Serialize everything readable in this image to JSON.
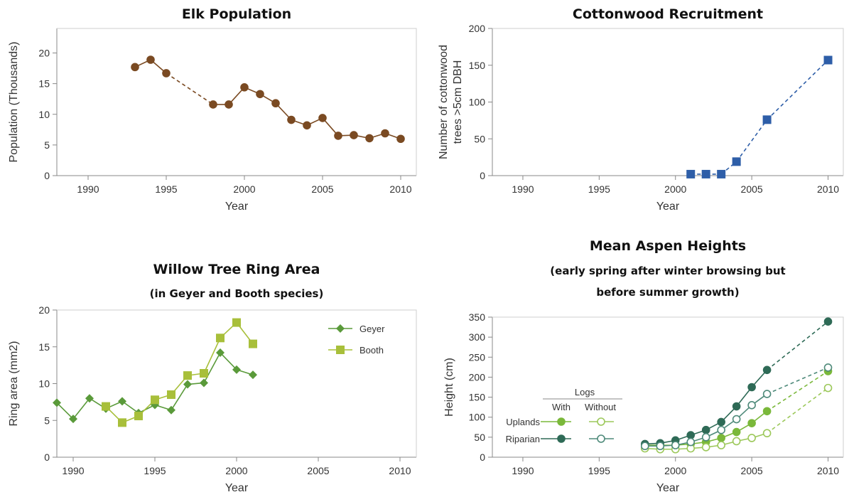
{
  "chart_data": [
    {
      "type": "line",
      "title": "Elk Population",
      "xlabel": "Year",
      "ylabel": "Population (Thousands)",
      "xlim": [
        1988,
        2011
      ],
      "ylim": [
        0,
        24
      ],
      "xticks": [
        "1990",
        "1995",
        "2000",
        "2005",
        "2010"
      ],
      "yticks": [
        "0",
        "5",
        "10",
        "15",
        "20"
      ],
      "color": "#7a4a22",
      "marker": "circle",
      "gap_dashed_between": [
        1995,
        1998
      ],
      "series": [
        {
          "x": [
            1993,
            1994,
            1995,
            1998,
            1999,
            2000,
            2001,
            2002,
            2003,
            2004,
            2005,
            2006,
            2007,
            2008,
            2009,
            2010
          ],
          "y": [
            17.7,
            18.9,
            16.7,
            11.6,
            11.6,
            14.4,
            13.3,
            11.8,
            9.1,
            8.2,
            9.4,
            6.5,
            6.6,
            6.1,
            6.9,
            6.0
          ]
        }
      ]
    },
    {
      "type": "line",
      "title": "Cottonwood Recruitment",
      "xlabel": "Year",
      "ylabel": "Number of cottonwood trees >5cm DBH",
      "ylabel_lines": [
        "Number of cottonwood",
        "trees >5cm DBH"
      ],
      "xlim": [
        1988,
        2011
      ],
      "ylim": [
        0,
        200
      ],
      "xticks": [
        "1990",
        "1995",
        "2000",
        "2005",
        "2010"
      ],
      "yticks": [
        "0",
        "50",
        "100",
        "150",
        "200"
      ],
      "color": "#2e5ea8",
      "marker": "square",
      "line_style": "dashed",
      "series": [
        {
          "x": [
            2001,
            2002,
            2003,
            2004,
            2006,
            2010
          ],
          "y": [
            2,
            2,
            2,
            19,
            76,
            157
          ]
        }
      ]
    },
    {
      "type": "line",
      "title": "Willow Tree Ring Area",
      "subtitle": "(in Geyer and Booth species)",
      "xlabel": "Year",
      "ylabel": "Ring area (mm2)",
      "xlim": [
        1989,
        2011
      ],
      "ylim": [
        0,
        20
      ],
      "xticks": [
        "1990",
        "1995",
        "2000",
        "2005",
        "2010"
      ],
      "yticks": [
        "0",
        "5",
        "10",
        "15",
        "20"
      ],
      "legend": "top-right",
      "series": [
        {
          "name": "Geyer",
          "color": "#5a9a3a",
          "marker": "diamond",
          "x": [
            1989,
            1990,
            1991,
            1992,
            1993,
            1994,
            1995,
            1996,
            1997,
            1998,
            1999,
            2000,
            2001
          ],
          "y": [
            7.4,
            5.2,
            8.0,
            6.6,
            7.6,
            6.0,
            7.1,
            6.4,
            9.9,
            10.1,
            14.2,
            11.9,
            11.2
          ]
        },
        {
          "name": "Booth",
          "color": "#a8bf3a",
          "marker": "square",
          "x": [
            1992,
            1993,
            1994,
            1995,
            1996,
            1997,
            1998,
            1999,
            2000,
            2001
          ],
          "y": [
            6.9,
            4.7,
            5.6,
            7.8,
            8.5,
            11.1,
            11.4,
            16.2,
            18.3,
            15.4
          ]
        }
      ]
    },
    {
      "type": "line",
      "title": "Mean Aspen Heights",
      "subtitle_lines": [
        "(early spring after winter browsing but",
        "before summer growth)"
      ],
      "xlabel": "Year",
      "ylabel": "Height (cm)",
      "xlim": [
        1988,
        2011
      ],
      "ylim": [
        0,
        350
      ],
      "xticks": [
        "1990",
        "1995",
        "2000",
        "2005",
        "2010"
      ],
      "yticks": [
        "0",
        "50",
        "100",
        "150",
        "200",
        "250",
        "300",
        "350"
      ],
      "legend": {
        "header": "Logs",
        "columns": [
          "With",
          "Without"
        ],
        "rows": [
          "Uplands",
          "Riparian"
        ],
        "placement": "middle-left"
      },
      "dashed_after": 2006,
      "series": [
        {
          "name": "Uplands With",
          "color": "#7ab83a",
          "fill": true,
          "x": [
            1998,
            1999,
            2000,
            2001,
            2002,
            2003,
            2004,
            2005,
            2006,
            2010
          ],
          "y": [
            30,
            30,
            30,
            33,
            38,
            48,
            63,
            85,
            115,
            215
          ]
        },
        {
          "name": "Uplands Without",
          "color": "#9cc85a",
          "fill": false,
          "x": [
            1998,
            1999,
            2000,
            2001,
            2002,
            2003,
            2004,
            2005,
            2006,
            2010
          ],
          "y": [
            22,
            20,
            20,
            22,
            25,
            30,
            40,
            48,
            60,
            173
          ]
        },
        {
          "name": "Riparian With",
          "color": "#2e6a56",
          "fill": true,
          "x": [
            1998,
            1999,
            2000,
            2001,
            2002,
            2003,
            2004,
            2005,
            2006,
            2010
          ],
          "y": [
            33,
            35,
            42,
            55,
            68,
            88,
            127,
            175,
            218,
            339
          ]
        },
        {
          "name": "Riparian Without",
          "color": "#4e8a7a",
          "fill": false,
          "x": [
            1998,
            1999,
            2000,
            2001,
            2002,
            2003,
            2004,
            2005,
            2006,
            2010
          ],
          "y": [
            28,
            28,
            30,
            38,
            50,
            68,
            95,
            130,
            158,
            224
          ]
        }
      ]
    }
  ]
}
